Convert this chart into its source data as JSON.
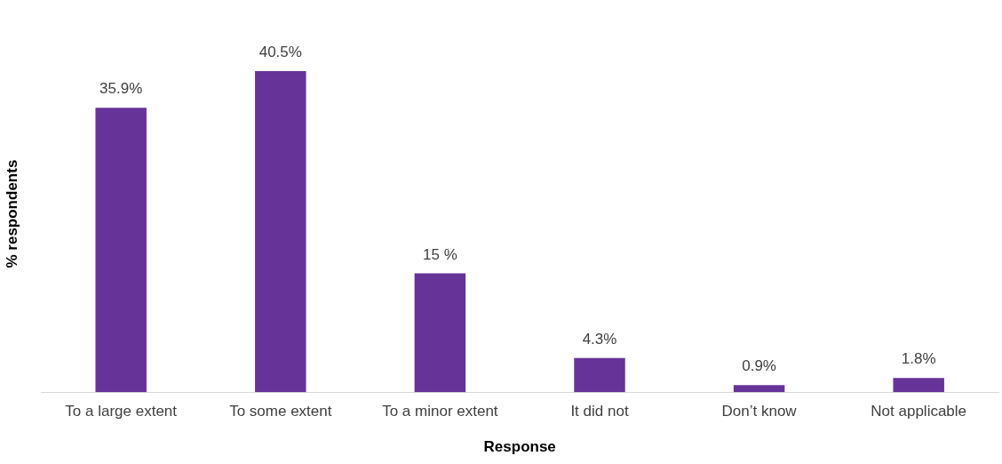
{
  "chart_data": {
    "type": "bar",
    "xlabel": "Response",
    "ylabel": "% respondents",
    "categories": [
      "To a large extent",
      "To some extent",
      "To a minor extent",
      "It did not",
      "Don’t know",
      "Not applicable"
    ],
    "values": [
      35.9,
      40.5,
      15,
      4.3,
      0.9,
      1.8
    ],
    "value_labels": [
      "35.9%",
      "40.5%",
      "15 %",
      "4.3%",
      "0.9%",
      "1.8%"
    ],
    "color": "#663399",
    "grid": false,
    "legend": false,
    "tick_labels": "x"
  }
}
